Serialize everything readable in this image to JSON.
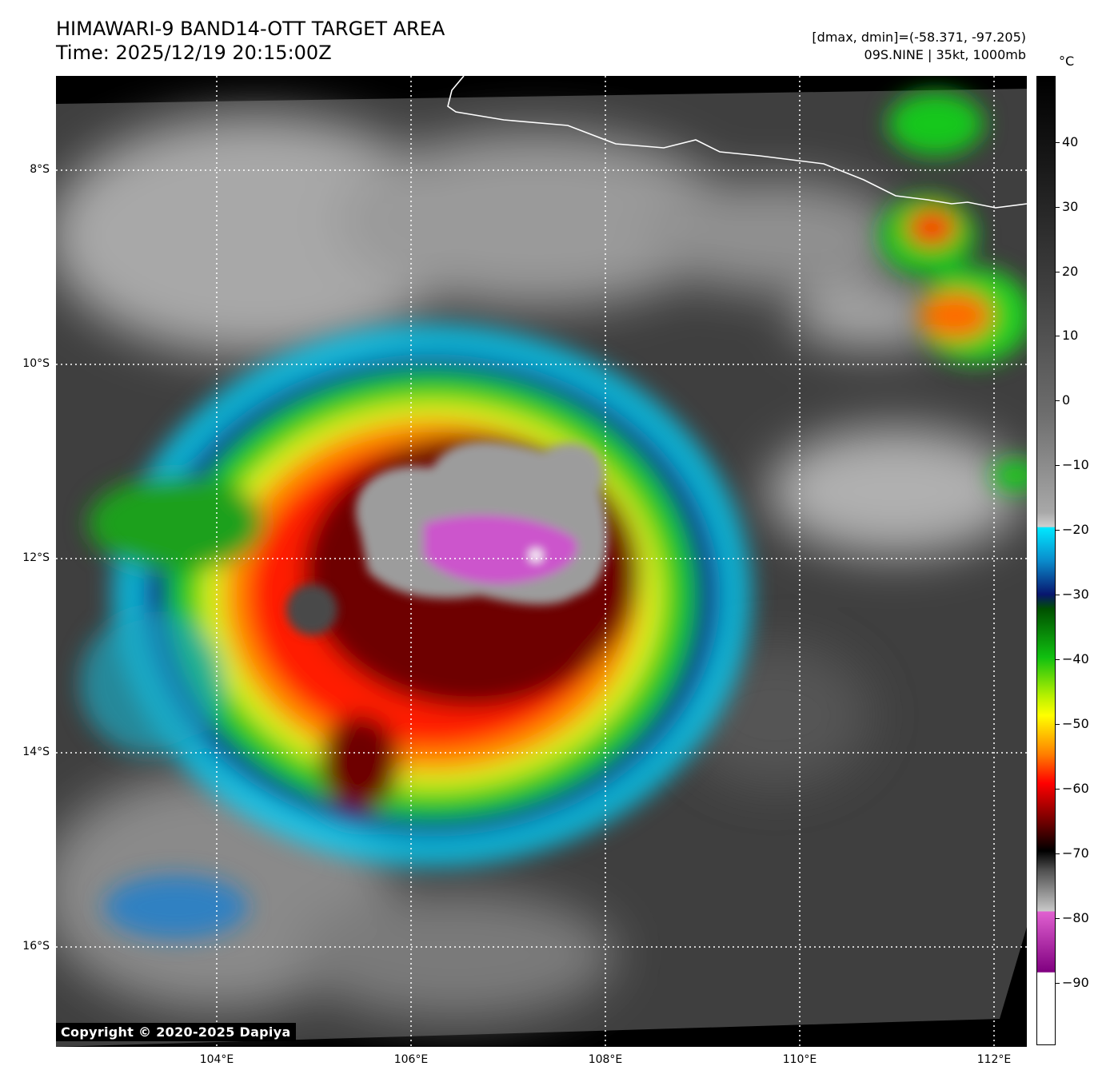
{
  "header": {
    "title_line1": "HIMAWARI-9 BAND14-OTT TARGET AREA",
    "title_line2": "Time: 2025/12/19 20:15:00Z",
    "range_text": "[dmax, dmin]=(-58.371, -97.205)",
    "storm_text": "09S.NINE | 35kt, 1000mb"
  },
  "colorbar": {
    "unit": "°C",
    "ticks": [
      "40",
      "30",
      "20",
      "10",
      "0",
      "−10",
      "−20",
      "−30",
      "−40",
      "−50",
      "−60",
      "−70",
      "−80",
      "−90"
    ]
  },
  "axes": {
    "lat_ticks": [
      "8°S",
      "10°S",
      "12°S",
      "14°S",
      "16°S"
    ],
    "lon_ticks": [
      "104°E",
      "106°E",
      "108°E",
      "110°E",
      "112°E"
    ]
  },
  "copyright": "Copyright © 2020-2025 Dapiya",
  "colors": {
    "background": "#ffffff",
    "map_background": "#000000",
    "grid": "#ffffff"
  }
}
